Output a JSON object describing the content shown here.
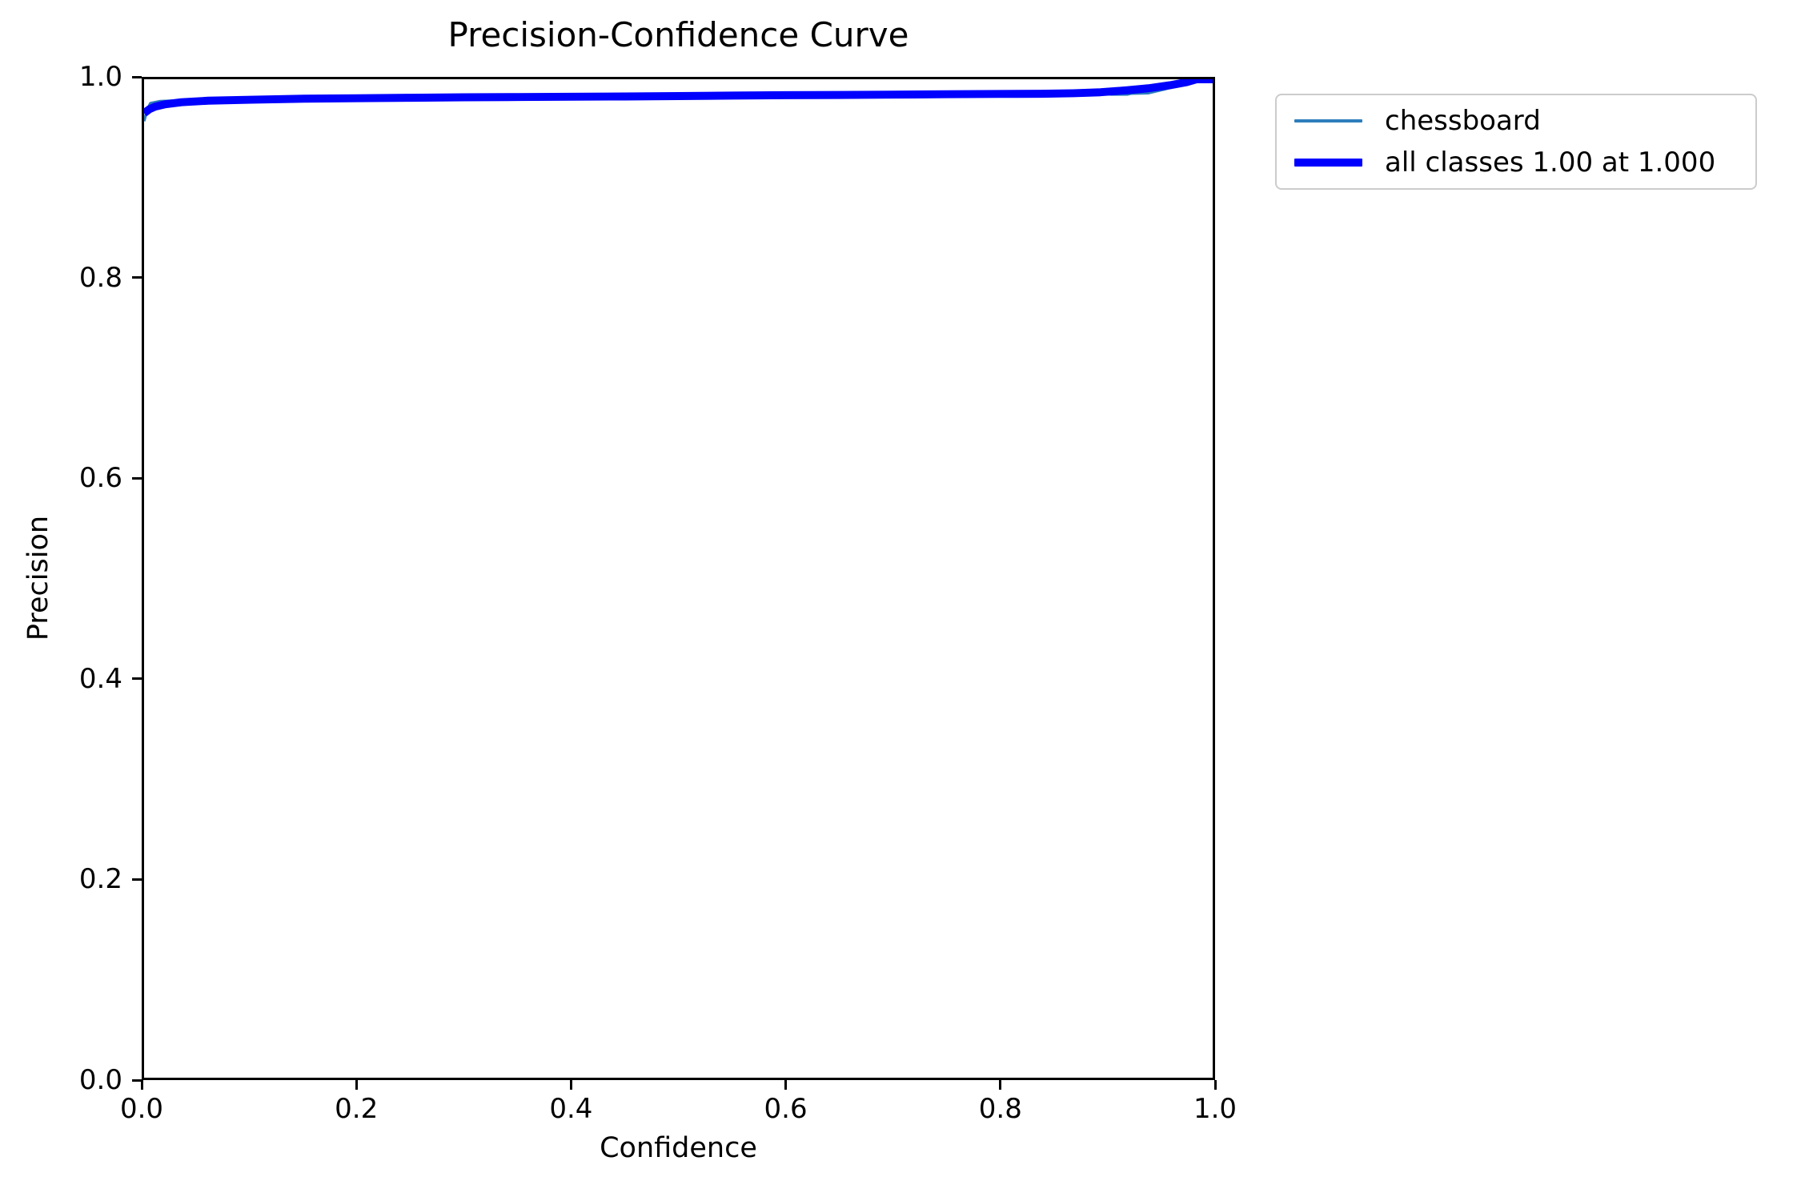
{
  "figure": {
    "background": "#ffffff"
  },
  "chart_data": {
    "type": "line",
    "title": "Precision-Confidence Curve",
    "xlabel": "Confidence",
    "ylabel": "Precision",
    "xlim": [
      0.0,
      1.0
    ],
    "ylim": [
      0.0,
      1.0
    ],
    "xticks": [
      "0.0",
      "0.2",
      "0.4",
      "0.6",
      "0.8",
      "1.0"
    ],
    "yticks": [
      "0.0",
      "0.2",
      "0.4",
      "0.6",
      "0.8",
      "1.0"
    ],
    "grid": false,
    "legend_position": "outside-upper-right",
    "series": [
      {
        "name": "chessboard",
        "color": "#2e7ebc",
        "line_width": 3.5,
        "x": [
          0.0,
          0.003,
          0.006,
          0.015,
          0.03,
          0.06,
          0.1,
          0.15,
          0.2,
          0.25,
          0.3,
          0.35,
          0.4,
          0.45,
          0.5,
          0.55,
          0.6,
          0.65,
          0.7,
          0.75,
          0.8,
          0.84,
          0.87,
          0.9,
          0.905,
          0.92,
          0.924,
          0.94,
          0.955,
          0.97,
          0.985,
          1.0
        ],
        "y": [
          0.958,
          0.97,
          0.976,
          0.978,
          0.9785,
          0.979,
          0.9797,
          0.9806,
          0.9811,
          0.9816,
          0.982,
          0.9823,
          0.9826,
          0.9829,
          0.9832,
          0.9836,
          0.984,
          0.9843,
          0.9846,
          0.985,
          0.9853,
          0.9855,
          0.9858,
          0.9858,
          0.9848,
          0.9848,
          0.9858,
          0.9862,
          0.99,
          0.9945,
          1.0,
          1.0
        ]
      },
      {
        "name": "all classes 1.00 at 1.000",
        "color": "#0000ff",
        "line_width": 10,
        "x": [
          0.0,
          0.005,
          0.01,
          0.02,
          0.035,
          0.06,
          0.1,
          0.15,
          0.2,
          0.25,
          0.3,
          0.35,
          0.4,
          0.45,
          0.5,
          0.55,
          0.6,
          0.65,
          0.7,
          0.75,
          0.8,
          0.84,
          0.87,
          0.895,
          0.92,
          0.94,
          0.96,
          0.975,
          0.985,
          1.0
        ],
        "y": [
          0.966,
          0.97,
          0.9725,
          0.975,
          0.977,
          0.9785,
          0.9795,
          0.9805,
          0.981,
          0.9815,
          0.982,
          0.9822,
          0.9825,
          0.9828,
          0.9832,
          0.9836,
          0.984,
          0.9843,
          0.9846,
          0.985,
          0.9853,
          0.9855,
          0.986,
          0.987,
          0.989,
          0.991,
          0.994,
          0.997,
          1.0,
          1.0
        ]
      }
    ]
  },
  "colors": {
    "spine": "#000000",
    "text": "#000000",
    "legend_border": "#cccccc"
  }
}
